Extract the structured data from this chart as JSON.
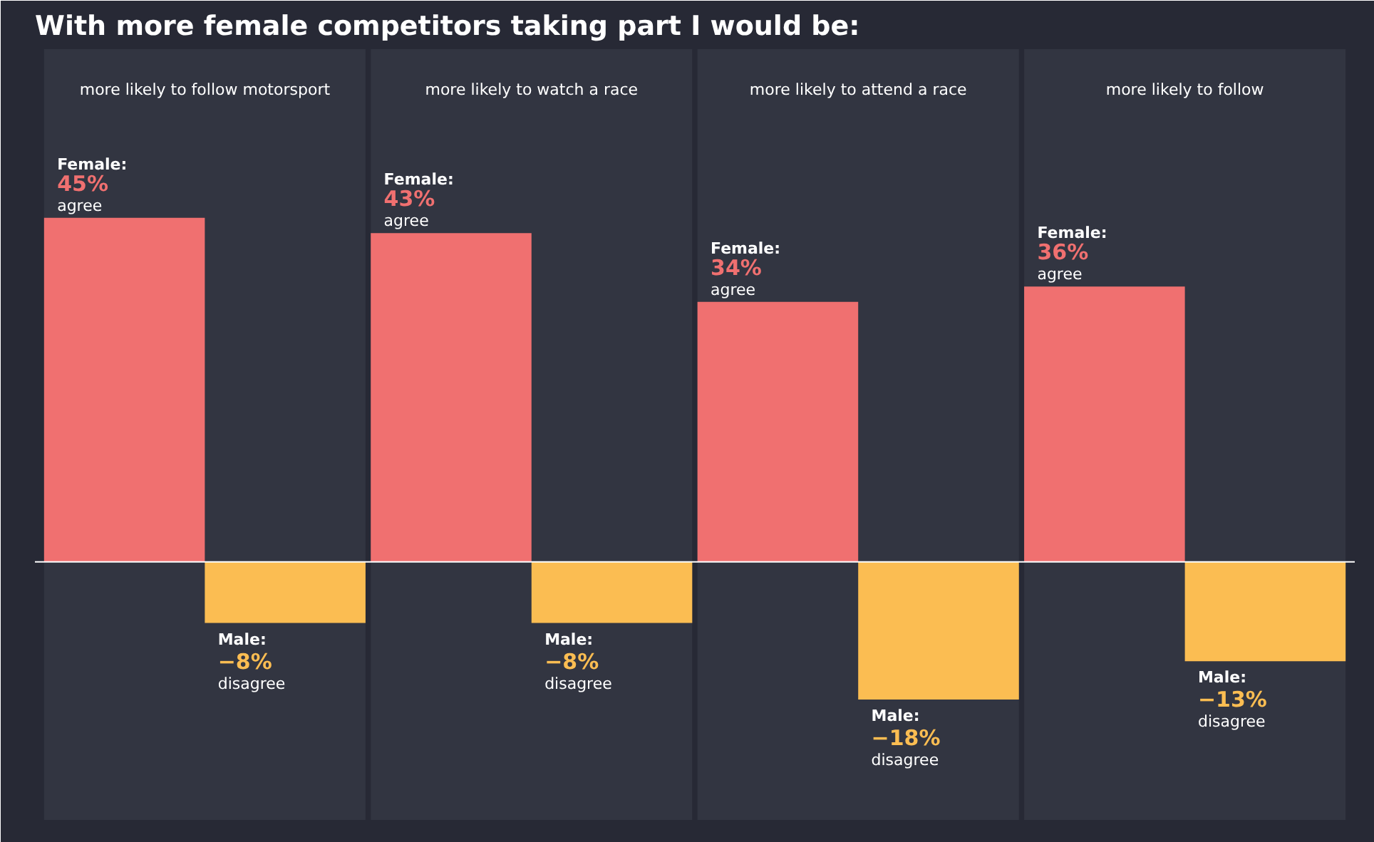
{
  "chart_data": {
    "type": "bar",
    "title": "With more female competitors taking part I would be:",
    "categories": [
      "more likely to follow motorsport",
      "more likely to watch a race",
      "more likely to attend a race",
      "more likely to follow"
    ],
    "series": [
      {
        "name": "Female:",
        "color": "#f07070",
        "values": [
          45,
          43,
          34,
          36
        ],
        "value_labels": [
          "45%",
          "43%",
          "34%",
          "36%"
        ]
      },
      {
        "name": "Male:",
        "color": "#fbbd52",
        "values": [
          -8,
          -8,
          -18,
          -13
        ],
        "value_labels": [
          "−8%",
          "−8%",
          "−18%",
          "−13%"
        ]
      }
    ],
    "annotations": [
      "agree",
      "agree",
      "agree",
      "agree",
      "disagree",
      "disagree",
      "disagree",
      "disagree"
    ]
  }
}
